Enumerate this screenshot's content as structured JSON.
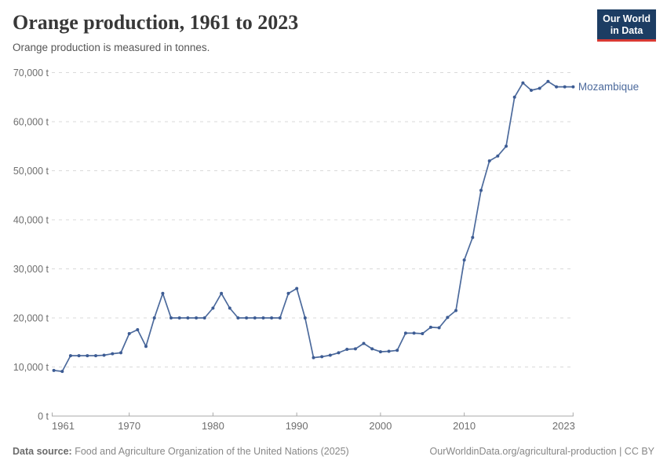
{
  "header": {
    "title": "Orange production, 1961 to 2023",
    "subtitle": "Orange production is measured in tonnes.",
    "logo": {
      "line1": "Our World",
      "line2": "in Data",
      "bg_color": "#1d3d63",
      "accent_color": "#d93a34"
    }
  },
  "footer": {
    "source_label": "Data source:",
    "source_text": " Food and Agriculture Organization of the United Nations (2025)",
    "link_text": "OurWorldinData.org/agricultural-production | CC BY"
  },
  "chart_data": {
    "type": "line",
    "title": "Orange production, 1961 to 2023",
    "ylabel": "",
    "xlabel": "",
    "unit": "t",
    "xlim": [
      1961,
      2023
    ],
    "ylim": [
      0,
      70000
    ],
    "yticks": [
      0,
      10000,
      20000,
      30000,
      40000,
      50000,
      60000,
      70000
    ],
    "xticks": [
      1961,
      1970,
      1980,
      1990,
      2000,
      2010,
      2023
    ],
    "grid": "horizontal-dashed",
    "legend_position": "end-of-line-label",
    "grid_color": "#d9d9d9",
    "axis_color": "#a8a8a8",
    "tick_label_color": "#6e6e6e",
    "series": [
      {
        "name": "Mozambique",
        "color": "#4c6a9c",
        "dot_color": "#3d5c94",
        "x": [
          1961,
          1962,
          1963,
          1964,
          1965,
          1966,
          1967,
          1968,
          1969,
          1970,
          1971,
          1972,
          1973,
          1974,
          1975,
          1976,
          1977,
          1978,
          1979,
          1980,
          1981,
          1982,
          1983,
          1984,
          1985,
          1986,
          1987,
          1988,
          1989,
          1990,
          1991,
          1992,
          1993,
          1994,
          1995,
          1996,
          1997,
          1998,
          1999,
          2000,
          2001,
          2002,
          2003,
          2004,
          2005,
          2006,
          2007,
          2008,
          2009,
          2010,
          2011,
          2012,
          2013,
          2014,
          2015,
          2016,
          2017,
          2018,
          2019,
          2020,
          2021,
          2022,
          2023
        ],
        "values": [
          9300,
          9100,
          12300,
          12300,
          12300,
          12300,
          12400,
          12700,
          12900,
          16800,
          17600,
          14200,
          20000,
          25000,
          20000,
          20000,
          20000,
          20000,
          20000,
          22000,
          25000,
          22000,
          20000,
          20000,
          20000,
          20000,
          20000,
          20000,
          25000,
          26000,
          20000,
          11900,
          12100,
          12400,
          12900,
          13600,
          13700,
          14800,
          13700,
          13100,
          13200,
          13400,
          16900,
          16900,
          16800,
          18100,
          18000,
          20100,
          21500,
          31800,
          36400,
          46000,
          52000,
          53000,
          55000,
          65000,
          67900,
          66400,
          66800,
          68200,
          67100,
          67100,
          67100
        ]
      }
    ]
  }
}
